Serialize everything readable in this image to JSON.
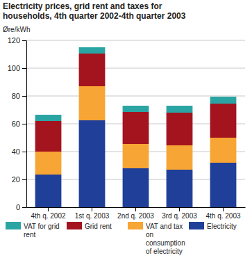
{
  "chart_data": {
    "type": "bar",
    "stacked": true,
    "title": "Electricity prices, grid rent and taxes for households, 4th quarter 2002-4th quarter 2003",
    "y_label": "Øre/kWh",
    "categories": [
      "4th q. 2002",
      "1st q. 2003",
      "2nd q. 2003",
      "3rd q. 2003",
      "4th q. 2003"
    ],
    "series": [
      {
        "name": "Electricity",
        "color": "#1f3f99",
        "values": [
          23.5,
          62.5,
          28,
          27,
          32
        ]
      },
      {
        "name": "VAT and tax on consumption of electricity",
        "color": "#f7a534",
        "values": [
          16.5,
          24.5,
          17.5,
          17.5,
          18
        ]
      },
      {
        "name": "Grid rent",
        "color": "#a3141f",
        "values": [
          22,
          23.5,
          23,
          23.5,
          24.5
        ]
      },
      {
        "name": "VAT for grid rent",
        "color": "#2ba5a3",
        "values": [
          4.5,
          4.5,
          4.5,
          5,
          5
        ]
      }
    ],
    "ylim": [
      0,
      120
    ],
    "yticks": [
      0,
      20,
      40,
      60,
      80,
      100,
      120
    ],
    "grid": true,
    "legend": "bottom"
  }
}
